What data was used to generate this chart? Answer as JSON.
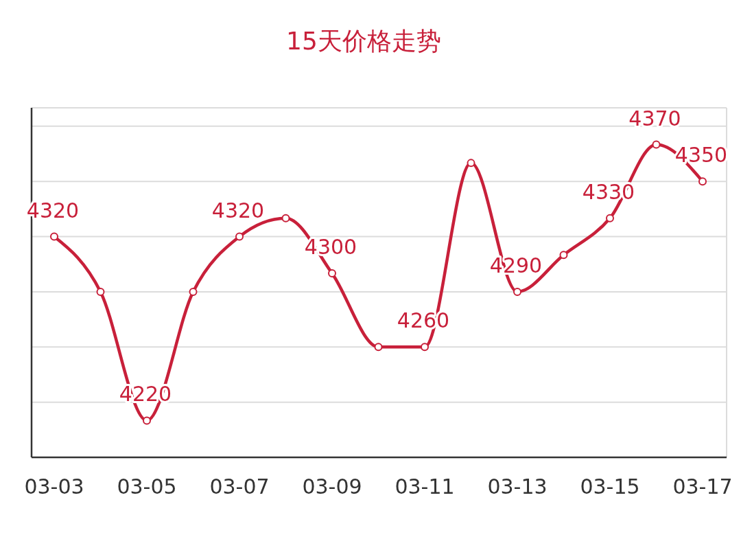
{
  "chart_data": {
    "type": "line",
    "title": "15天价格走势",
    "categories": [
      "03-03",
      null,
      "03-05",
      null,
      "03-07",
      null,
      "03-09",
      null,
      "03-11",
      null,
      "03-13",
      null,
      "03-15",
      null,
      "03-17"
    ],
    "series": [
      {
        "color": "#c8203a",
        "values": [
          4320,
          4290,
          4220,
          4290,
          4320,
          4330,
          4300,
          4260,
          4260,
          4360,
          4290,
          4310,
          4330,
          4370,
          4350
        ],
        "value_labels": [
          "4320",
          null,
          "4220",
          null,
          "4320",
          null,
          "4300",
          null,
          "4260",
          null,
          "4290",
          null,
          "4330",
          "4370",
          "4350"
        ]
      }
    ],
    "ylim": [
      4200,
      4390
    ],
    "yticks": [
      {
        "value": 4230,
        "label": null
      },
      {
        "value": 4260,
        "label": null
      },
      {
        "value": 4290,
        "label": null
      },
      {
        "value": 4320,
        "label": null
      },
      {
        "value": 4350,
        "label": null
      },
      {
        "value": 4380,
        "label": null
      }
    ],
    "tick_labels": "x",
    "grid": "y",
    "marker": "circle"
  }
}
